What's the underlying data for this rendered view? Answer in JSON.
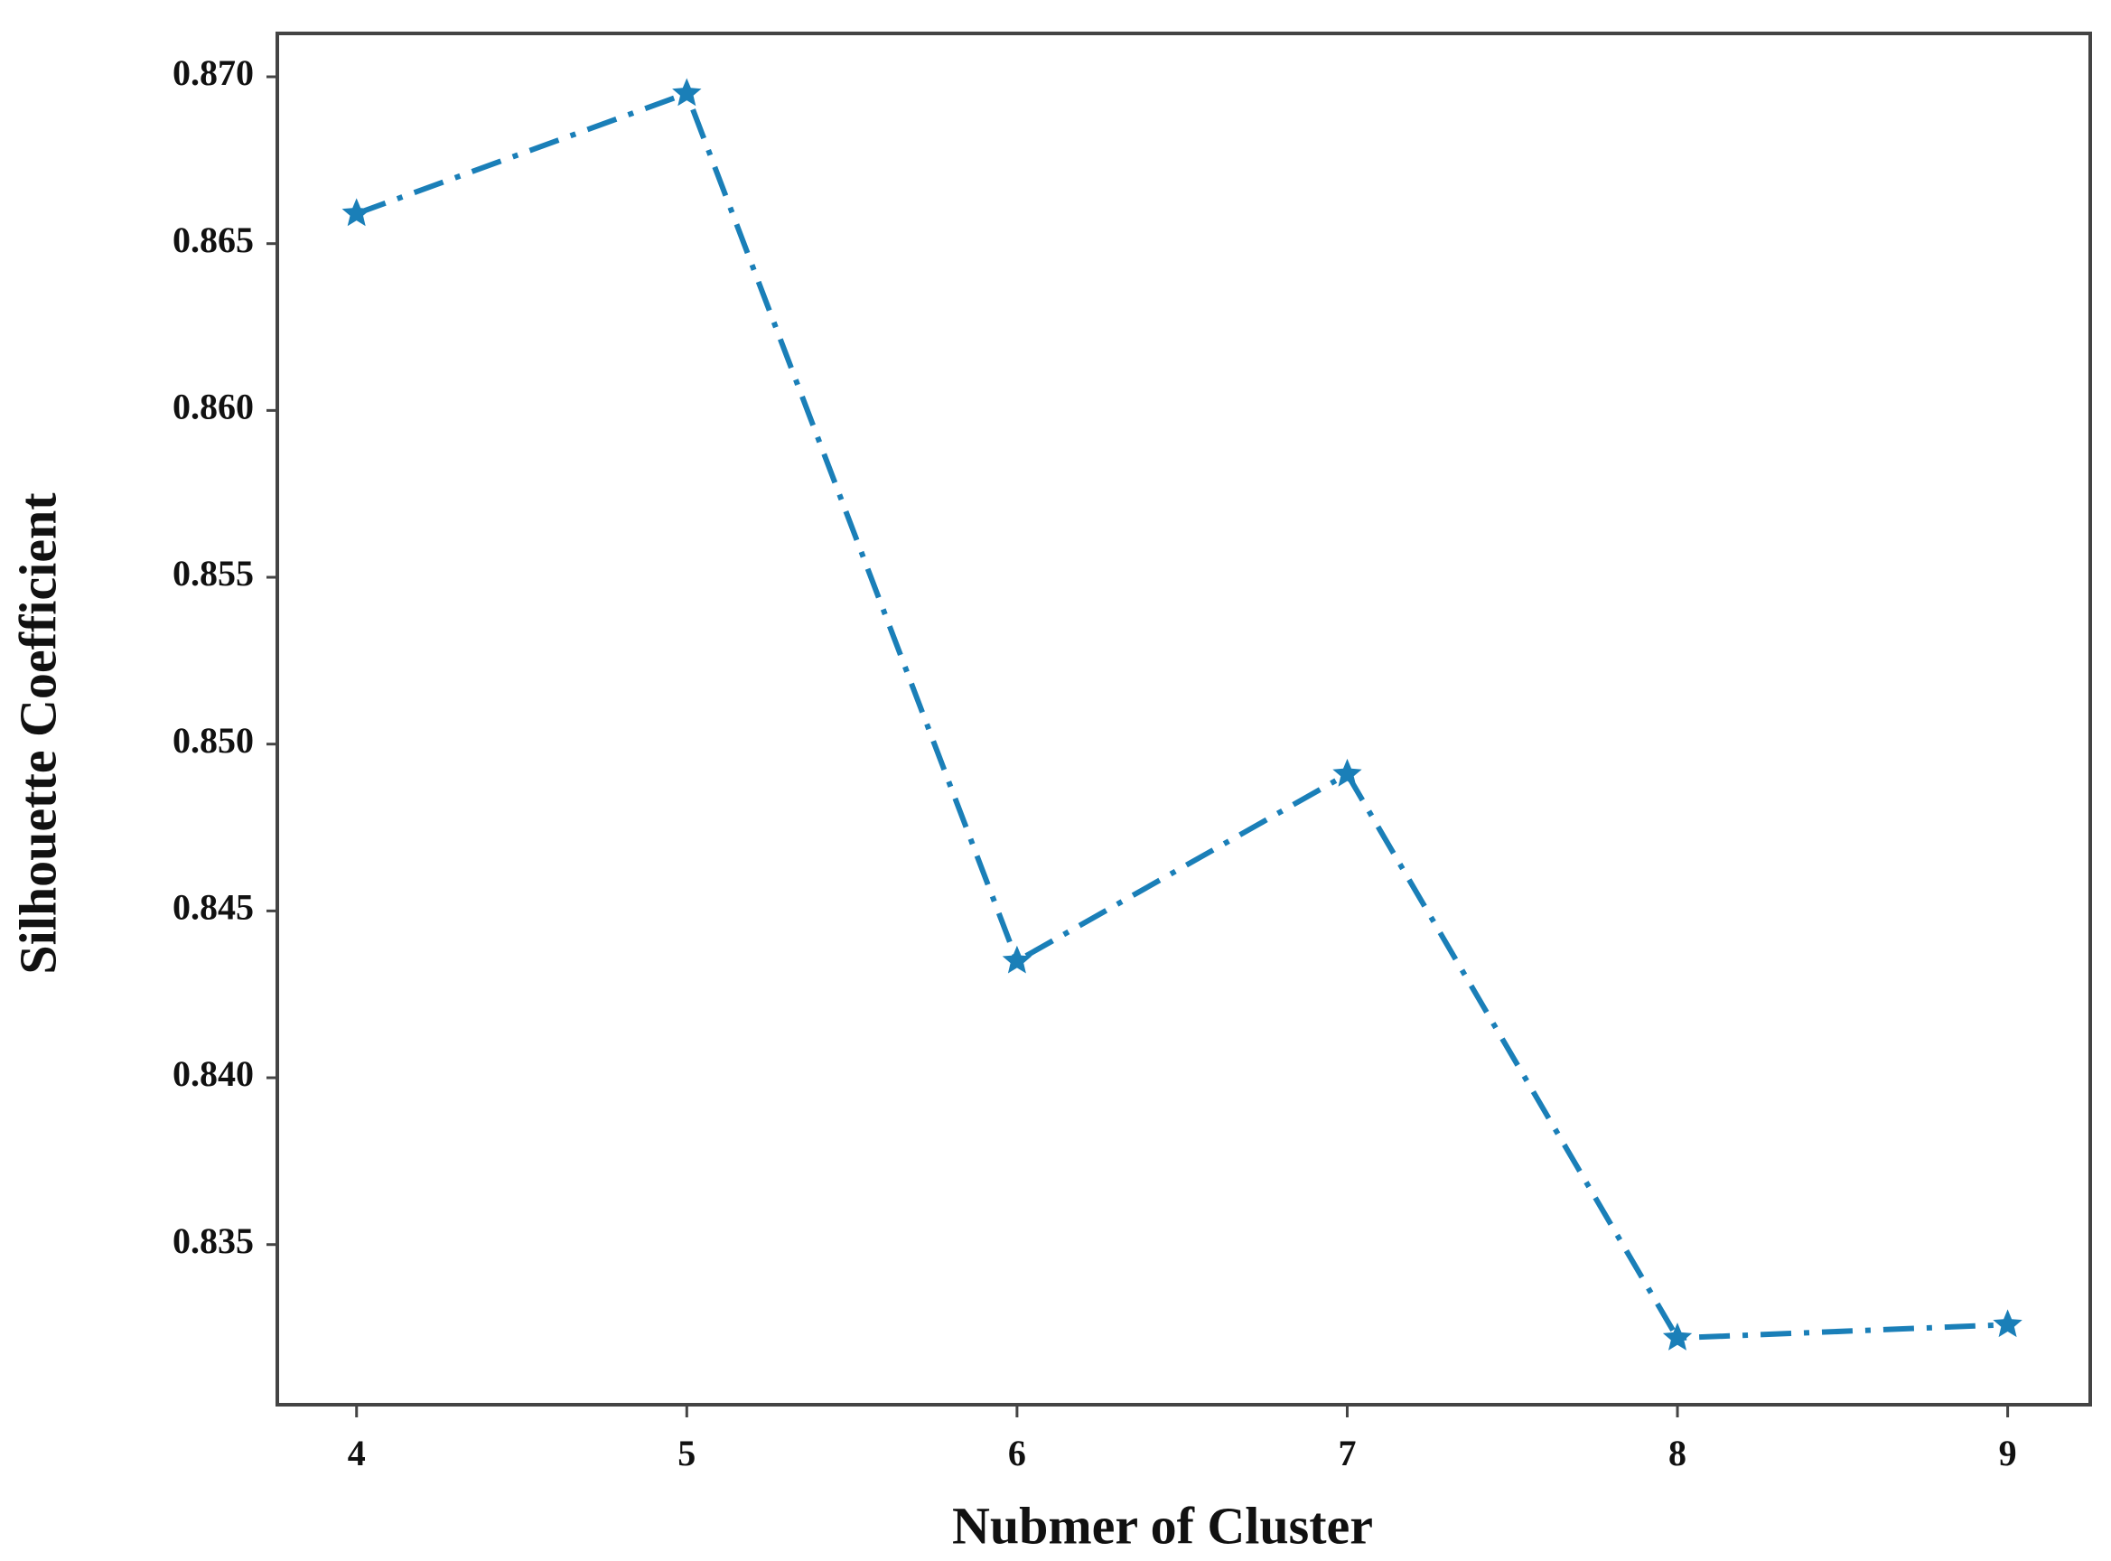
{
  "chart_data": {
    "type": "line",
    "x_label": "Nubmer of Cluster",
    "y_label": "Silhouette Coefficient",
    "x": [
      4,
      5,
      6,
      7,
      8,
      9
    ],
    "series": [
      {
        "color": "#1a7fb8",
        "values": [
          0.8659,
          0.8695,
          0.8435,
          0.8491,
          0.8322,
          0.8326
        ]
      }
    ],
    "xlim": [
      3.76,
      9.25
    ],
    "xticks": [
      4,
      5,
      6,
      7,
      8,
      9
    ],
    "ylim": [
      0.8302,
      0.8713
    ],
    "yticks": [
      {
        "value": 0.835,
        "label": "0.835"
      },
      {
        "value": 0.84,
        "label": "0.840"
      },
      {
        "value": 0.845,
        "label": "0.845"
      },
      {
        "value": 0.85,
        "label": "0.850"
      },
      {
        "value": 0.855,
        "label": "0.855"
      },
      {
        "value": 0.86,
        "label": "0.860"
      },
      {
        "value": 0.865,
        "label": "0.865"
      },
      {
        "value": 0.87,
        "label": "0.870"
      }
    ],
    "grid": false,
    "line_style": "dashdot",
    "marker": "star"
  }
}
